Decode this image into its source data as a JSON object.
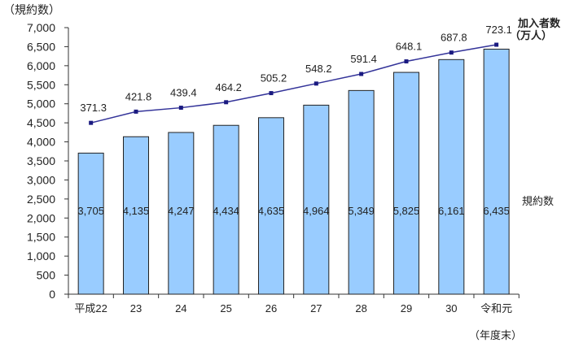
{
  "chart_data": {
    "type": "bar+line",
    "categories": [
      "平成22",
      "23",
      "24",
      "25",
      "26",
      "27",
      "28",
      "29",
      "30",
      "令和元"
    ],
    "x_note": "（年度末）",
    "series": [
      {
        "name": "規約数",
        "type": "bar",
        "axis": "left",
        "color": "#99CCFF",
        "values": [
          3705,
          4135,
          4247,
          4434,
          4635,
          4964,
          5349,
          5825,
          6161,
          6435
        ],
        "labels": [
          "3,705",
          "4,135",
          "4,247",
          "4,434",
          "4,635",
          "4,964",
          "5,349",
          "5,825",
          "6,161",
          "6,435"
        ]
      },
      {
        "name": "加入者数（万人）",
        "type": "line",
        "axis": "right-hidden",
        "color": "#333399",
        "values": [
          371.3,
          421.8,
          439.4,
          464.2,
          505.2,
          548.2,
          591.4,
          648.1,
          687.8,
          723.1
        ],
        "labels": [
          "371.3",
          "421.8",
          "439.4",
          "464.2",
          "505.2",
          "548.2",
          "591.4",
          "648.1",
          "687.8",
          "723.1"
        ]
      }
    ],
    "ylabel": "（規約数）",
    "ylim": [
      0,
      7000
    ],
    "y2lim": [
      -400,
      800
    ],
    "yticks": [
      "0",
      "500",
      "1,000",
      "1,500",
      "2,000",
      "2,500",
      "3,000",
      "3,500",
      "4,000",
      "4,500",
      "5,000",
      "5,500",
      "6,000",
      "6,500",
      "7,000"
    ],
    "legend_line": [
      "加入者数",
      "（万人）"
    ],
    "legend_bar": "規約数",
    "grid": false
  }
}
